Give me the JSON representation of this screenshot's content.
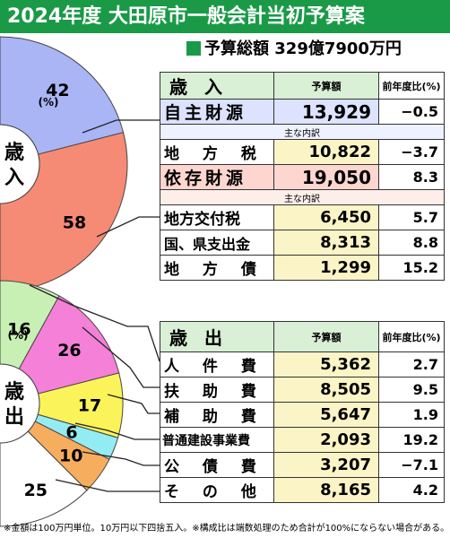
{
  "title": "2024年度 大田原市一般会計当初予算案",
  "total": "予算総額 329億7900万円",
  "footnote": "※金額は100万円単位。10万円以下四捨五入。※構成比は端数処理のため合計が100%にならない場合がある。",
  "colors": {
    "title_bg": "#1a9a47",
    "jishu": "#aab5f5",
    "izon": "#f58a75",
    "jinken": "#c9f0b4",
    "fujo": "#f580d8",
    "hojo": "#fbf35a",
    "futsu": "#93ecf2",
    "kosai": "#f7ad5e",
    "sonota": "#ffffff"
  },
  "revenue_table": {
    "head": {
      "label": "歳 入",
      "amt": "予算額",
      "pct": "前年度比(%)"
    },
    "rows": [
      {
        "label": "自主財源",
        "amt": "13,929",
        "pct": "−0.5"
      },
      {
        "sub": "主な内訳"
      },
      {
        "label": "地 方 税",
        "amt": "10,822",
        "pct": "−3.7"
      },
      {
        "label": "依存財源",
        "amt": "19,050",
        "pct": "8.3"
      },
      {
        "sub": "主な内訳"
      },
      {
        "label": "地方交付税",
        "amt": "6,450",
        "pct": "5.7"
      },
      {
        "label": "国、県支出金",
        "amt": "8,313",
        "pct": "8.8"
      },
      {
        "label": "地 方 債",
        "amt": "1,299",
        "pct": "15.2"
      }
    ]
  },
  "expense_table": {
    "head": {
      "label": "歳 出",
      "amt": "予算額",
      "pct": "前年度比(%)"
    },
    "rows": [
      {
        "label": "人 件 費",
        "amt": "5,362",
        "pct": "2.7"
      },
      {
        "label": "扶 助 費",
        "amt": "8,505",
        "pct": "9.5"
      },
      {
        "label": "補 助 費",
        "amt": "5,647",
        "pct": "1.9"
      },
      {
        "label": "普通建設事業費",
        "amt": "2,093",
        "pct": "19.2"
      },
      {
        "label": "公 債 費",
        "amt": "3,207",
        "pct": "−7.1"
      },
      {
        "label": "そ の 他",
        "amt": "8,165",
        "pct": "4.2"
      }
    ]
  },
  "chart_data": [
    {
      "type": "pie",
      "title": "歳入",
      "unit": "(%)",
      "categories": [
        "自主財源",
        "依存財源"
      ],
      "values": [
        42,
        58
      ],
      "labels": [
        "42",
        "58"
      ]
    },
    {
      "type": "pie",
      "title": "歳出",
      "unit": "(%)",
      "categories": [
        "人件費",
        "扶助費",
        "補助費",
        "普通建設事業費",
        "公債費",
        "その他"
      ],
      "values": [
        16,
        26,
        17,
        6,
        10,
        25
      ],
      "labels": [
        "16",
        "26",
        "17",
        "6",
        "10",
        "25"
      ]
    }
  ]
}
